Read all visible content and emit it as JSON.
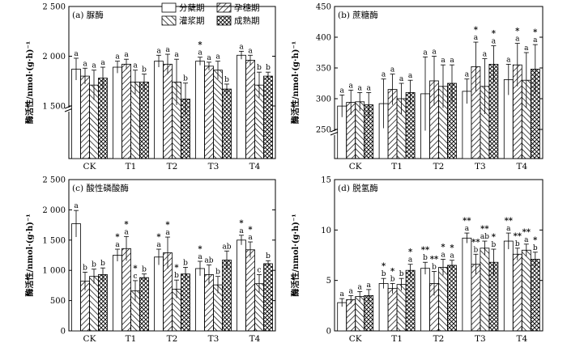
{
  "legend": {
    "entries": [
      "分蘖期",
      "孕穗期",
      "灌浆期",
      "成熟期"
    ]
  },
  "chart_data": [
    {
      "type": "bar",
      "panel": "a",
      "title": "(a) 脲酶",
      "ylabel": "酶活性/nmol·(g·h)⁻¹",
      "categories": [
        "CK",
        "T1",
        "T2",
        "T3",
        "T4"
      ],
      "axis_break": true,
      "ylim": [
        1500,
        2500
      ],
      "yticks": [
        1500,
        2000,
        2500
      ],
      "ytick_labels": [
        "1 500",
        "2 000",
        "2 500"
      ],
      "grid": false,
      "legend_position": "top-center",
      "series": [
        {
          "name": "分蘖期",
          "values": [
            1870,
            1890,
            1950,
            1950,
            2010
          ],
          "errors": [
            110,
            60,
            60,
            40,
            40
          ],
          "labels": [
            "a",
            "a",
            "a",
            "a",
            "a"
          ],
          "stars": [
            "",
            "",
            "",
            "*",
            ""
          ]
        },
        {
          "name": "孕穗期",
          "values": [
            1800,
            1920,
            1920,
            1900,
            1960
          ],
          "errors": [
            80,
            50,
            100,
            40,
            50
          ],
          "labels": [
            "a",
            "a",
            "a",
            "a",
            "a"
          ],
          "stars": [
            "",
            "",
            "",
            "",
            ""
          ]
        },
        {
          "name": "灌浆期",
          "values": [
            1710,
            1740,
            1740,
            1860,
            1710
          ],
          "errors": [
            150,
            120,
            230,
            90,
            130
          ],
          "labels": [
            "a",
            "a",
            "a",
            "a",
            "b"
          ],
          "stars": [
            "",
            "",
            "",
            "",
            ""
          ]
        },
        {
          "name": "成熟期",
          "values": [
            1780,
            1740,
            1570,
            1670,
            1800
          ],
          "errors": [
            110,
            80,
            160,
            50,
            40
          ],
          "labels": [
            "a",
            "b",
            "b",
            "b",
            "b"
          ],
          "stars": [
            "",
            "",
            "",
            "",
            ""
          ]
        }
      ]
    },
    {
      "type": "bar",
      "panel": "b",
      "title": "(b) 蔗糖酶",
      "ylabel": "酶活性/nmol·(g·h)⁻¹",
      "categories": [
        "CK",
        "T1",
        "T2",
        "T3",
        "T4"
      ],
      "axis_break": true,
      "ylim": [
        250,
        450
      ],
      "yticks": [
        250,
        300,
        350,
        400,
        450
      ],
      "ytick_labels": [
        "250",
        "300",
        "350",
        "400",
        "450"
      ],
      "grid": false,
      "series": [
        {
          "name": "分蘖期",
          "values": [
            288,
            292,
            308,
            312,
            331
          ],
          "errors": [
            18,
            40,
            60,
            20,
            25
          ],
          "labels": [
            "a",
            "a",
            "a",
            "a",
            "a"
          ],
          "stars": [
            "",
            "",
            "",
            "",
            ""
          ]
        },
        {
          "name": "孕穗期",
          "values": [
            294,
            315,
            329,
            352,
            355
          ],
          "errors": [
            20,
            25,
            40,
            40,
            35
          ],
          "labels": [
            "a",
            "a",
            "a",
            "a",
            "a"
          ],
          "stars": [
            "",
            "",
            "",
            "*",
            "*"
          ]
        },
        {
          "name": "灌浆期",
          "values": [
            295,
            300,
            320,
            320,
            330
          ],
          "errors": [
            15,
            25,
            35,
            45,
            45
          ],
          "labels": [
            "a",
            "a",
            "a",
            "a",
            "a"
          ],
          "stars": [
            "",
            "",
            "",
            "",
            ""
          ]
        },
        {
          "name": "成熟期",
          "values": [
            290,
            310,
            325,
            356,
            348
          ],
          "errors": [
            20,
            20,
            30,
            30,
            40
          ],
          "labels": [
            "a",
            "a",
            "a",
            "a",
            "a"
          ],
          "stars": [
            "",
            "",
            "",
            "*",
            "*"
          ]
        }
      ]
    },
    {
      "type": "bar",
      "panel": "c",
      "title": "(c) 酸性磷酸酶",
      "ylabel": "酶活性/nmol·(g·h)⁻¹",
      "categories": [
        "CK",
        "T1",
        "T2",
        "T3",
        "T4"
      ],
      "axis_break": false,
      "ylim": [
        0,
        2500
      ],
      "yticks": [
        0,
        500,
        1000,
        1500,
        2000,
        2500
      ],
      "ytick_labels": [
        "0",
        "500",
        "1 000",
        "1 500",
        "2 000",
        "2 500"
      ],
      "grid": false,
      "series": [
        {
          "name": "分蘖期",
          "values": [
            1770,
            1250,
            1220,
            1030,
            1500
          ],
          "errors": [
            220,
            100,
            130,
            120,
            80
          ],
          "labels": [
            "a",
            "a",
            "a",
            "a",
            "a"
          ],
          "stars": [
            "",
            "*",
            "*",
            "*",
            "*"
          ]
        },
        {
          "name": "孕穗期",
          "values": [
            820,
            1360,
            1290,
            930,
            1340
          ],
          "errors": [
            150,
            200,
            260,
            160,
            130
          ],
          "labels": [
            "b",
            "a",
            "a",
            "ab",
            "a"
          ],
          "stars": [
            "",
            "*",
            "*",
            "",
            "*"
          ]
        },
        {
          "name": "灌浆期",
          "values": [
            900,
            660,
            690,
            760,
            780
          ],
          "errors": [
            120,
            170,
            150,
            140,
            150
          ],
          "labels": [
            "b",
            "c",
            "b",
            "b",
            "c"
          ],
          "stars": [
            "",
            "*",
            "*",
            "",
            ""
          ]
        },
        {
          "name": "成熟期",
          "values": [
            930,
            880,
            940,
            1170,
            1110
          ],
          "errors": [
            110,
            60,
            110,
            150,
            50
          ],
          "labels": [
            "b",
            "b",
            "b",
            "ab",
            "b"
          ],
          "stars": [
            "",
            "",
            "",
            "",
            ""
          ]
        }
      ]
    },
    {
      "type": "bar",
      "panel": "d",
      "title": "(d) 脱氢酶",
      "ylabel": "酶活性/nmol·(g·h)⁻¹",
      "categories": [
        "CK",
        "T1",
        "T2",
        "T3",
        "T4"
      ],
      "axis_break": false,
      "ylim": [
        0,
        15
      ],
      "yticks": [
        0,
        5,
        10,
        15
      ],
      "ytick_labels": [
        "0",
        "5",
        "10",
        "15"
      ],
      "grid": false,
      "series": [
        {
          "name": "分蘖期",
          "values": [
            2.8,
            4.7,
            6.2,
            9.2,
            8.9
          ],
          "errors": [
            0.4,
            0.5,
            0.6,
            0.5,
            0.8
          ],
          "labels": [
            "a",
            "b",
            "b",
            "a",
            "a"
          ],
          "stars": [
            "",
            "*",
            "**",
            "**",
            "**"
          ]
        },
        {
          "name": "孕穗期",
          "values": [
            3.1,
            4.2,
            4.7,
            6.6,
            7.6
          ],
          "errors": [
            0.4,
            0.5,
            1.2,
            1.0,
            0.6
          ],
          "labels": [
            "a",
            "b",
            "b",
            "b",
            "b"
          ],
          "stars": [
            "",
            "*",
            "**",
            "**",
            "**"
          ]
        },
        {
          "name": "灌浆期",
          "values": [
            3.4,
            4.6,
            6.3,
            8.2,
            8.0
          ],
          "errors": [
            0.5,
            0.6,
            0.8,
            0.7,
            0.6
          ],
          "labels": [
            "a",
            "b",
            "a",
            "ab",
            "a"
          ],
          "stars": [
            "",
            "",
            "*",
            "**",
            "**"
          ]
        },
        {
          "name": "成熟期",
          "values": [
            3.5,
            6.0,
            6.5,
            6.8,
            7.1
          ],
          "errors": [
            0.6,
            0.6,
            0.5,
            1.3,
            0.7
          ],
          "labels": [
            "a",
            "a",
            "a",
            "b",
            "b"
          ],
          "stars": [
            "",
            "*",
            "*",
            "*",
            "*"
          ]
        }
      ]
    }
  ]
}
